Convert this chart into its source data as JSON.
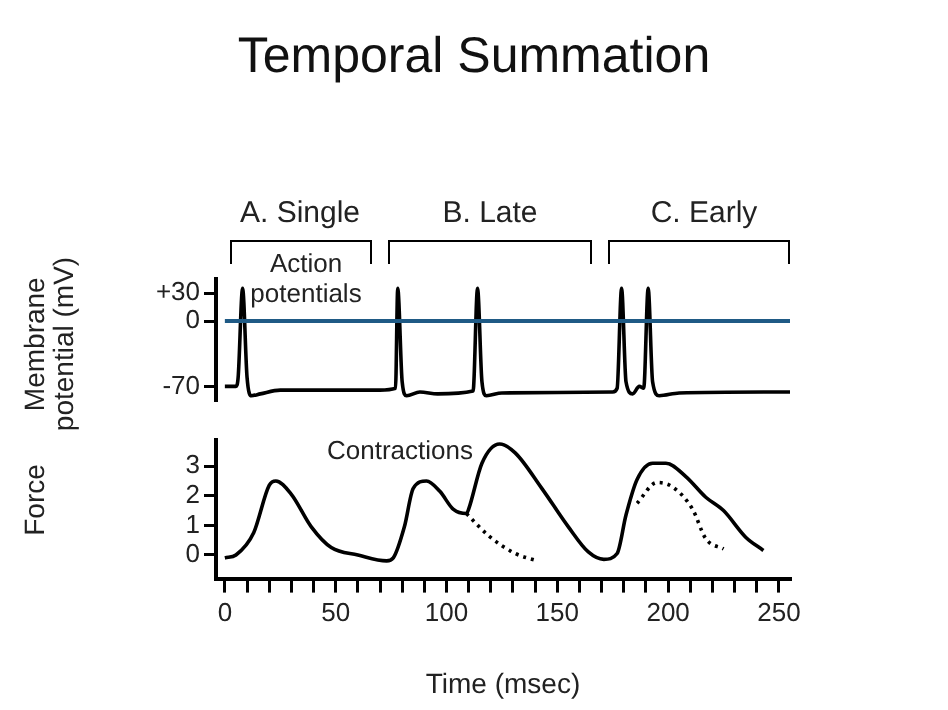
{
  "chart_data": [
    {
      "type": "line",
      "title": "Temporal Summation",
      "ylabel": "Membrane potential (mV)",
      "tick_labels": "y",
      "legend": false,
      "grid": false,
      "marker": "none",
      "xlim": [
        -4,
        255
      ],
      "ylim": [
        -85,
        45
      ],
      "yticks": [
        -70,
        0,
        {
          "value": 30,
          "label": "+30"
        }
      ],
      "series": [
        {
          "color": "#000000",
          "line_style": "solid",
          "x": [
            0,
            5,
            6,
            8,
            10,
            12,
            16,
            25,
            70,
            77,
            78,
            80,
            82,
            88,
            96,
            112,
            114,
            116,
            118,
            125,
            175,
            177,
            179,
            181,
            184,
            187,
            189,
            191,
            193,
            196,
            205,
            255
          ],
          "values": [
            -70,
            -70,
            -60,
            35,
            -60,
            -80,
            -78,
            -74,
            -74,
            -72,
            35,
            -65,
            -80,
            -76,
            -78,
            -75,
            35,
            -65,
            -80,
            -77,
            -76,
            -72,
            35,
            -65,
            -78,
            -70,
            -72,
            35,
            -65,
            -80,
            -77,
            -76
          ]
        }
      ],
      "ref_lines": [
        {
          "axis": "y",
          "value": 0,
          "color": "#1f5a85"
        }
      ],
      "annotations": [
        "A. Single",
        "B. Late",
        "C. Early",
        "Action potentials"
      ]
    },
    {
      "type": "line",
      "xlabel": "Time (msec)",
      "ylabel": "Force",
      "legend": false,
      "grid": false,
      "marker": "none",
      "xlim": [
        -4,
        255
      ],
      "ylim": [
        -0.8,
        3.9
      ],
      "yticks": [
        0,
        1,
        2,
        3
      ],
      "xticks": [
        0,
        {
          "value": 10,
          "label": null
        },
        {
          "value": 20,
          "label": null
        },
        {
          "value": 30,
          "label": null
        },
        {
          "value": 40,
          "label": null
        },
        50,
        {
          "value": 60,
          "label": null
        },
        {
          "value": 70,
          "label": null
        },
        {
          "value": 80,
          "label": null
        },
        {
          "value": 90,
          "label": null
        },
        100,
        {
          "value": 110,
          "label": null
        },
        {
          "value": 120,
          "label": null
        },
        {
          "value": 130,
          "label": null
        },
        {
          "value": 140,
          "label": null
        },
        150,
        {
          "value": 160,
          "label": null
        },
        {
          "value": 170,
          "label": null
        },
        {
          "value": 180,
          "label": null
        },
        {
          "value": 190,
          "label": null
        },
        200,
        {
          "value": 210,
          "label": null
        },
        {
          "value": 220,
          "label": null
        },
        {
          "value": 230,
          "label": null
        },
        {
          "value": 240,
          "label": null
        },
        250
      ],
      "series": [
        {
          "color": "#000000",
          "line_style": "solid",
          "x": [
            0,
            5,
            13,
            20,
            23,
            30,
            39,
            48,
            60,
            73,
            76,
            81,
            85,
            91,
            97,
            103,
            109,
            110,
            116,
            124,
            131,
            143,
            155,
            164,
            171,
            177,
            181,
            186,
            193,
            199,
            208,
            217,
            225,
            235,
            243
          ],
          "values": [
            -0.1,
            0,
            0.75,
            2.35,
            2.5,
            2.05,
            0.95,
            0.25,
            0,
            -0.2,
            -0.1,
            0.95,
            2.25,
            2.5,
            2.15,
            1.55,
            1.4,
            1.55,
            3.1,
            3.75,
            3.45,
            2.25,
            0.95,
            0.1,
            -0.15,
            0.05,
            1.35,
            2.55,
            3.1,
            3.1,
            2.65,
            1.95,
            1.5,
            0.6,
            0.15
          ]
        },
        {
          "color": "#000000",
          "line_style": "dotted",
          "x": [
            109,
            119,
            131,
            141
          ],
          "values": [
            1.4,
            0.65,
            0.05,
            -0.2
          ]
        },
        {
          "color": "#000000",
          "line_style": "dotted",
          "x": [
            186,
            195,
            202,
            211,
            217,
            225
          ],
          "values": [
            1.75,
            2.45,
            2.3,
            1.55,
            0.55,
            0.2
          ]
        }
      ],
      "annotations": [
        "Contractions"
      ]
    }
  ]
}
